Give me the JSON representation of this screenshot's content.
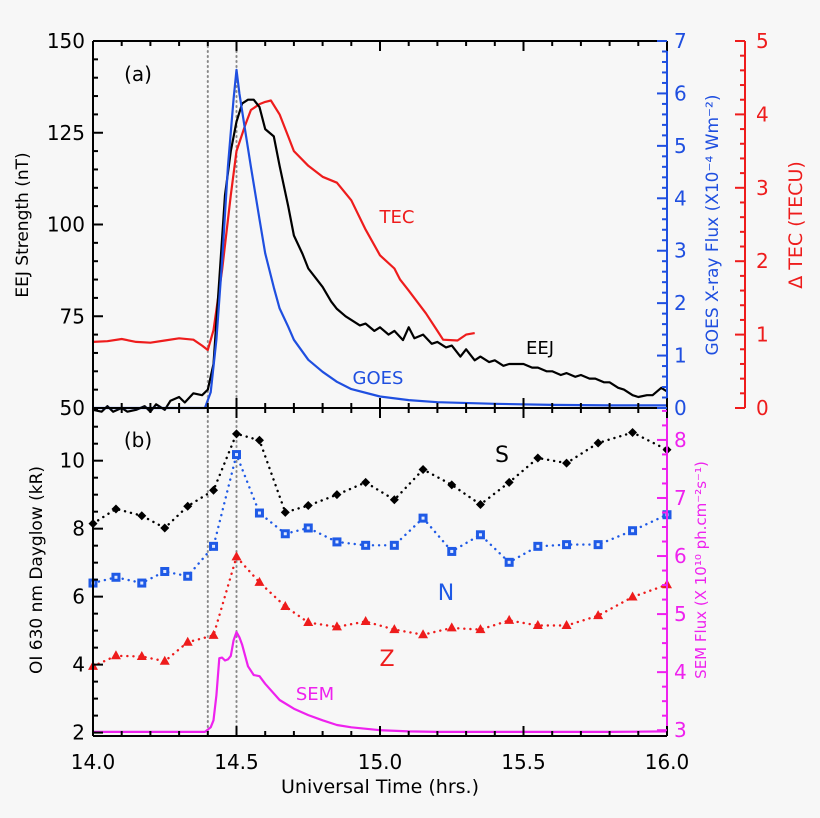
{
  "colors": {
    "eej": "#000000",
    "goes": "#1f4fe0",
    "tec": "#ee1c1c",
    "sem": "#ee22ee",
    "s": "#000000",
    "n": "#1f5ae6",
    "z": "#ee1c1c",
    "vline": "#888888"
  },
  "chart_data": [
    {
      "type": "line",
      "panel_label": "(a)",
      "xlim": [
        14.0,
        16.0
      ],
      "xticks": [
        14.0,
        14.5,
        15.0,
        15.5,
        16.0
      ],
      "grid": false,
      "reference_lines_x": [
        14.4,
        14.5
      ],
      "y_axes": {
        "left": {
          "label": "EEJ Strength (nT)",
          "ylim": [
            50,
            150
          ],
          "ticks": [
            "50",
            "75",
            "100",
            "125",
            "150"
          ]
        },
        "right1": {
          "label": "GOES X-ray Flux (X10⁻⁴ Wm⁻²)",
          "ylim": [
            0,
            7
          ],
          "ticks": [
            "0",
            "1",
            "2",
            "3",
            "4",
            "5",
            "6",
            "7"
          ]
        },
        "right2": {
          "label": "Δ TEC (TECU)",
          "ylim": [
            0,
            5
          ],
          "ticks": [
            "0",
            "1",
            "2",
            "3",
            "4",
            "5"
          ]
        }
      },
      "series": [
        {
          "name": "EEJ",
          "axis": "left",
          "x": [
            14.0,
            14.03,
            14.05,
            14.07,
            14.1,
            14.12,
            14.15,
            14.18,
            14.2,
            14.22,
            14.25,
            14.27,
            14.3,
            14.32,
            14.35,
            14.38,
            14.4,
            14.42,
            14.44,
            14.46,
            14.48,
            14.5,
            14.52,
            14.54,
            14.56,
            14.58,
            14.6,
            14.63,
            14.65,
            14.68,
            14.7,
            14.73,
            14.75,
            14.78,
            14.8,
            14.83,
            14.85,
            14.88,
            14.9,
            14.93,
            14.95,
            14.98,
            15.0,
            15.03,
            15.05,
            15.08,
            15.1,
            15.12,
            15.15,
            15.18,
            15.2,
            15.23,
            15.25,
            15.28,
            15.3,
            15.33,
            15.35,
            15.38,
            15.4,
            15.43,
            15.45,
            15.48,
            15.5,
            15.53,
            15.55,
            15.58,
            15.6,
            15.63,
            15.65,
            15.68,
            15.7,
            15.73,
            15.75,
            15.78,
            15.8,
            15.83,
            15.85,
            15.88,
            15.9,
            15.93,
            15.95,
            15.98,
            16.0
          ],
          "y": [
            49.5,
            49,
            50.5,
            49,
            50,
            49,
            49.5,
            50.5,
            49,
            51,
            49.5,
            52,
            53,
            51.5,
            54,
            53.5,
            55,
            62,
            85,
            108,
            120,
            128,
            133,
            134,
            134,
            132,
            126,
            124,
            116,
            105,
            97,
            92,
            88,
            85,
            83,
            79,
            77,
            75,
            74,
            72.5,
            73,
            71,
            72,
            70,
            71,
            68.5,
            72,
            69,
            70,
            67.5,
            68,
            66.5,
            67,
            64,
            66,
            63,
            64,
            62.5,
            63,
            61.5,
            62,
            62,
            62,
            61,
            61,
            60,
            60,
            59,
            59.5,
            58.5,
            59,
            58,
            58,
            57,
            57,
            55.5,
            55,
            53.5,
            53,
            53.5,
            53.5,
            55.5,
            54.5
          ]
        },
        {
          "name": "GOES",
          "axis": "right1",
          "x": [
            14.0,
            14.1,
            14.2,
            14.3,
            14.39,
            14.41,
            14.43,
            14.45,
            14.47,
            14.49,
            14.5,
            14.51,
            14.53,
            14.55,
            14.58,
            14.6,
            14.63,
            14.65,
            14.68,
            14.7,
            14.75,
            14.8,
            14.85,
            14.9,
            15.0,
            15.1,
            15.2,
            15.4,
            15.6,
            15.8,
            16.0
          ],
          "y": [
            0,
            0,
            0,
            0,
            0,
            0.3,
            1.3,
            2.8,
            4.6,
            5.9,
            6.45,
            6.0,
            5.3,
            4.6,
            3.6,
            2.95,
            2.3,
            1.9,
            1.55,
            1.3,
            0.92,
            0.69,
            0.5,
            0.36,
            0.22,
            0.15,
            0.11,
            0.08,
            0.06,
            0.05,
            0.05
          ]
        },
        {
          "name": "TEC",
          "axis": "right2",
          "x": [
            14.0,
            14.05,
            14.1,
            14.15,
            14.2,
            14.25,
            14.3,
            14.35,
            14.38,
            14.4,
            14.42,
            14.45,
            14.48,
            14.5,
            14.53,
            14.55,
            14.58,
            14.6,
            14.62,
            14.65,
            14.68,
            14.7,
            14.75,
            14.8,
            14.85,
            14.9,
            14.95,
            15.0,
            15.05,
            15.07,
            15.1,
            15.16,
            15.2,
            15.22,
            15.27,
            15.3,
            15.33
          ],
          "y": [
            0.9,
            0.91,
            0.94,
            0.9,
            0.89,
            0.92,
            0.95,
            0.93,
            0.85,
            0.79,
            1.06,
            1.88,
            2.9,
            3.5,
            3.85,
            4.06,
            4.14,
            4.17,
            4.19,
            4.0,
            3.7,
            3.5,
            3.3,
            3.15,
            3.07,
            2.83,
            2.43,
            2.08,
            1.9,
            1.75,
            1.6,
            1.29,
            1.05,
            0.93,
            0.92,
            1.0,
            1.02
          ]
        }
      ],
      "annotations": [
        "TEC",
        "EEJ",
        "GOES"
      ]
    },
    {
      "type": "line",
      "panel_label": "(b)",
      "xlabel": "Universal Time (hrs.)",
      "xlim": [
        14.0,
        16.0
      ],
      "xticks": [
        "14.0",
        "14.5",
        "15.0",
        "15.5",
        "16.0"
      ],
      "grid": false,
      "reference_lines_x": [
        14.4,
        14.5
      ],
      "y_axes": {
        "left": {
          "label": "OI 630 nm Dayglow (kR)",
          "ylim": [
            1.9,
            11.55
          ],
          "ticks": [
            "2",
            "4",
            "6",
            "8",
            "10"
          ]
        },
        "right": {
          "label": "SEM Flux (X 10¹⁰ ph.cm⁻²s⁻¹)",
          "ylim": [
            2.9,
            8.55
          ],
          "ticks": [
            "3",
            "4",
            "5",
            "6",
            "7",
            "8"
          ]
        }
      },
      "series": [
        {
          "name": "S",
          "axis": "left",
          "marker": "diamond",
          "style": "dotted",
          "x": [
            14.0,
            14.08,
            14.17,
            14.25,
            14.33,
            14.42,
            14.5,
            14.58,
            14.67,
            14.75,
            14.85,
            14.95,
            15.05,
            15.15,
            15.25,
            15.35,
            15.45,
            15.55,
            15.65,
            15.76,
            15.88,
            16.0
          ],
          "y": [
            8.15,
            8.58,
            8.38,
            8.02,
            8.66,
            9.13,
            10.79,
            10.6,
            8.48,
            8.68,
            9.0,
            9.36,
            8.85,
            9.74,
            9.29,
            8.71,
            9.36,
            10.08,
            9.93,
            10.52,
            10.83,
            10.32
          ]
        },
        {
          "name": "N",
          "axis": "left",
          "marker": "square",
          "style": "dotted",
          "x": [
            14.0,
            14.08,
            14.17,
            14.25,
            14.33,
            14.42,
            14.5,
            14.58,
            14.67,
            14.75,
            14.85,
            14.95,
            15.05,
            15.15,
            15.25,
            15.35,
            15.45,
            15.55,
            15.65,
            15.76,
            15.88,
            16.0
          ],
          "y": [
            6.4,
            6.57,
            6.4,
            6.74,
            6.6,
            7.48,
            10.18,
            8.46,
            7.85,
            8.02,
            7.61,
            7.51,
            7.51,
            8.31,
            7.33,
            7.82,
            7.01,
            7.48,
            7.53,
            7.53,
            7.94,
            8.41
          ]
        },
        {
          "name": "Z",
          "axis": "left",
          "marker": "triangle",
          "style": "dotted",
          "x": [
            14.0,
            14.08,
            14.17,
            14.25,
            14.33,
            14.42,
            14.5,
            14.58,
            14.67,
            14.75,
            14.85,
            14.95,
            15.05,
            15.15,
            15.25,
            15.35,
            15.45,
            15.55,
            15.65,
            15.76,
            15.88,
            16.0
          ],
          "y": [
            3.95,
            4.26,
            4.24,
            4.1,
            4.66,
            4.86,
            7.17,
            6.42,
            5.71,
            5.24,
            5.11,
            5.27,
            5.03,
            4.88,
            5.08,
            5.03,
            5.3,
            5.15,
            5.15,
            5.44,
            5.99,
            6.35
          ]
        },
        {
          "name": "SEM",
          "axis": "right",
          "style": "solid",
          "x": [
            14.0,
            14.2,
            14.39,
            14.41,
            14.42,
            14.43,
            14.44,
            14.45,
            14.46,
            14.47,
            14.48,
            14.49,
            14.5,
            14.51,
            14.52,
            14.54,
            14.56,
            14.58,
            14.6,
            14.65,
            14.7,
            14.75,
            14.8,
            14.85,
            14.9,
            15.0,
            15.1,
            15.2,
            15.5,
            15.8,
            16.0
          ],
          "y": [
            2.97,
            2.97,
            2.97,
            3.05,
            3.17,
            3.6,
            4.24,
            4.25,
            4.2,
            4.22,
            4.28,
            4.55,
            4.69,
            4.6,
            4.47,
            4.1,
            3.95,
            3.93,
            3.8,
            3.52,
            3.37,
            3.26,
            3.17,
            3.09,
            3.05,
            3.0,
            2.98,
            2.97,
            2.97,
            2.97,
            2.98
          ]
        }
      ],
      "annotations": [
        "S",
        "N",
        "Z",
        "SEM"
      ]
    }
  ]
}
